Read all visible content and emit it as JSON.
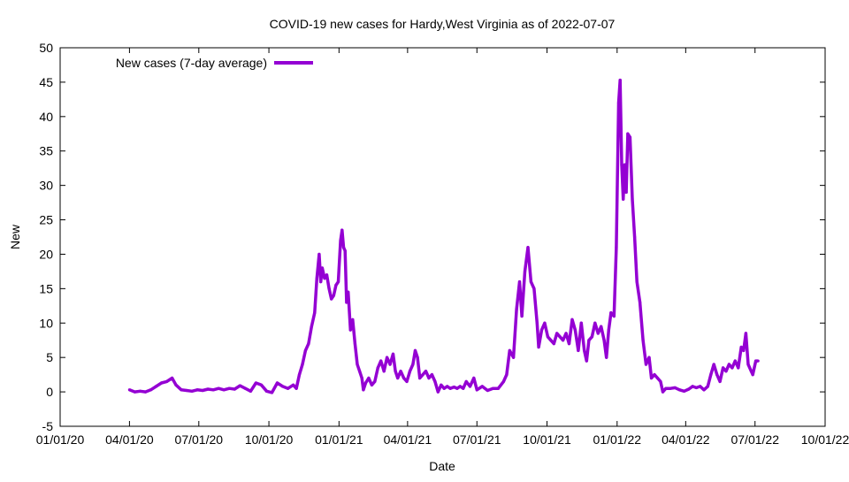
{
  "chart_data": {
    "type": "line",
    "title": "COVID-19 new cases for Hardy,West Virginia as of 2022-07-07",
    "xlabel": "Date",
    "ylabel": "New",
    "xlim": [
      "2020-01-01",
      "2022-10-01"
    ],
    "ylim": [
      -5,
      50
    ],
    "x_ticks": [
      "01/01/20",
      "04/01/20",
      "07/01/20",
      "10/01/20",
      "01/01/21",
      "04/01/21",
      "07/01/21",
      "10/01/21",
      "01/01/22",
      "04/01/22",
      "07/01/22",
      "10/01/22"
    ],
    "y_ticks": [
      "-5",
      "0",
      "5",
      "10",
      "15",
      "20",
      "25",
      "30",
      "35",
      "40",
      "45",
      "50"
    ],
    "grid": false,
    "legend_position": "top-left",
    "series": [
      {
        "name": "New cases (7-day average)",
        "color": "#9400d3",
        "x": [
          "2020-04-01",
          "2020-04-08",
          "2020-04-15",
          "2020-04-22",
          "2020-04-29",
          "2020-05-06",
          "2020-05-13",
          "2020-05-20",
          "2020-05-27",
          "2020-06-01",
          "2020-06-08",
          "2020-06-15",
          "2020-06-22",
          "2020-06-29",
          "2020-07-06",
          "2020-07-13",
          "2020-07-20",
          "2020-07-27",
          "2020-08-03",
          "2020-08-10",
          "2020-08-17",
          "2020-08-24",
          "2020-08-31",
          "2020-09-07",
          "2020-09-14",
          "2020-09-21",
          "2020-09-28",
          "2020-10-05",
          "2020-10-12",
          "2020-10-19",
          "2020-10-26",
          "2020-11-02",
          "2020-11-06",
          "2020-11-10",
          "2020-11-14",
          "2020-11-18",
          "2020-11-22",
          "2020-11-26",
          "2020-11-30",
          "2020-12-03",
          "2020-12-06",
          "2020-12-08",
          "2020-12-10",
          "2020-12-13",
          "2020-12-16",
          "2020-12-19",
          "2020-12-22",
          "2020-12-25",
          "2020-12-28",
          "2020-12-31",
          "2021-01-03",
          "2021-01-05",
          "2021-01-07",
          "2021-01-09",
          "2021-01-11",
          "2021-01-13",
          "2021-01-16",
          "2021-01-19",
          "2021-01-22",
          "2021-01-25",
          "2021-01-28",
          "2021-01-31",
          "2021-02-02",
          "2021-02-05",
          "2021-02-09",
          "2021-02-13",
          "2021-02-17",
          "2021-02-21",
          "2021-02-25",
          "2021-03-01",
          "2021-03-05",
          "2021-03-09",
          "2021-03-13",
          "2021-03-16",
          "2021-03-19",
          "2021-03-23",
          "2021-03-27",
          "2021-03-31",
          "2021-04-04",
          "2021-04-08",
          "2021-04-11",
          "2021-04-14",
          "2021-04-17",
          "2021-04-21",
          "2021-04-25",
          "2021-04-29",
          "2021-05-03",
          "2021-05-07",
          "2021-05-11",
          "2021-05-15",
          "2021-05-19",
          "2021-05-23",
          "2021-05-27",
          "2021-06-01",
          "2021-06-05",
          "2021-06-09",
          "2021-06-13",
          "2021-06-17",
          "2021-06-22",
          "2021-06-27",
          "2021-07-01",
          "2021-07-08",
          "2021-07-15",
          "2021-07-22",
          "2021-07-29",
          "2021-08-05",
          "2021-08-09",
          "2021-08-13",
          "2021-08-18",
          "2021-08-22",
          "2021-08-26",
          "2021-08-29",
          "2021-09-02",
          "2021-09-06",
          "2021-09-10",
          "2021-09-14",
          "2021-09-18",
          "2021-09-20",
          "2021-09-24",
          "2021-09-28",
          "2021-10-02",
          "2021-10-06",
          "2021-10-10",
          "2021-10-14",
          "2021-10-18",
          "2021-10-22",
          "2021-10-26",
          "2021-10-30",
          "2021-11-03",
          "2021-11-07",
          "2021-11-11",
          "2021-11-15",
          "2021-11-19",
          "2021-11-22",
          "2021-11-25",
          "2021-11-29",
          "2021-12-03",
          "2021-12-07",
          "2021-12-11",
          "2021-12-15",
          "2021-12-18",
          "2021-12-21",
          "2021-12-24",
          "2021-12-28",
          "2021-12-31",
          "2022-01-03",
          "2022-01-05",
          "2022-01-07",
          "2022-01-09",
          "2022-01-11",
          "2022-01-13",
          "2022-01-15",
          "2022-01-18",
          "2022-01-21",
          "2022-01-24",
          "2022-01-27",
          "2022-01-31",
          "2022-02-04",
          "2022-02-08",
          "2022-02-12",
          "2022-02-15",
          "2022-02-19",
          "2022-02-23",
          "2022-02-27",
          "2022-03-02",
          "2022-03-06",
          "2022-03-12",
          "2022-03-18",
          "2022-03-24",
          "2022-03-30",
          "2022-04-05",
          "2022-04-10",
          "2022-04-15",
          "2022-04-20",
          "2022-04-25",
          "2022-04-30",
          "2022-05-04",
          "2022-05-08",
          "2022-05-12",
          "2022-05-16",
          "2022-05-20",
          "2022-05-24",
          "2022-05-28",
          "2022-06-01",
          "2022-06-05",
          "2022-06-09",
          "2022-06-13",
          "2022-06-16",
          "2022-06-19",
          "2022-06-22",
          "2022-06-26",
          "2022-06-28",
          "2022-07-02",
          "2022-07-05"
        ],
        "y": [
          0.3,
          0.0,
          0.1,
          0.0,
          0.3,
          0.8,
          1.3,
          1.5,
          2.0,
          1.0,
          0.3,
          0.2,
          0.1,
          0.3,
          0.2,
          0.4,
          0.3,
          0.5,
          0.3,
          0.5,
          0.4,
          0.9,
          0.5,
          0.1,
          1.3,
          1.0,
          0.1,
          -0.1,
          1.3,
          0.8,
          0.5,
          1.0,
          0.5,
          2.5,
          4.0,
          6.0,
          7.0,
          9.5,
          11.5,
          16.5,
          20.0,
          16.0,
          18.0,
          16.5,
          17.0,
          15.0,
          13.5,
          14.0,
          15.5,
          16.0,
          22.0,
          23.5,
          21.0,
          20.5,
          13.0,
          14.5,
          9.0,
          10.5,
          7.0,
          4.0,
          3.0,
          2.0,
          0.3,
          1.3,
          2.0,
          1.0,
          1.5,
          3.5,
          4.5,
          3.0,
          5.0,
          4.0,
          5.5,
          3.0,
          2.0,
          3.0,
          2.0,
          1.5,
          3.0,
          4.0,
          6.0,
          5.0,
          2.0,
          2.5,
          3.0,
          2.0,
          2.5,
          1.5,
          0.0,
          1.0,
          0.5,
          0.8,
          0.5,
          0.7,
          0.5,
          0.8,
          0.5,
          1.5,
          0.8,
          2.0,
          0.3,
          0.8,
          0.2,
          0.5,
          0.5,
          1.5,
          2.5,
          6.0,
          5.0,
          12.0,
          16.0,
          11.0,
          17.5,
          21.0,
          16.0,
          15.0,
          10.0,
          6.5,
          9.0,
          10.0,
          8.0,
          7.5,
          7.0,
          8.5,
          8.0,
          7.5,
          8.5,
          7.0,
          10.5,
          9.0,
          6.0,
          10.0,
          6.0,
          4.5,
          7.5,
          8.0,
          10.0,
          8.5,
          9.5,
          7.5,
          5.0,
          9.0,
          11.5,
          11.0,
          21.0,
          42.0,
          45.3,
          33.0,
          28.0,
          33.0,
          29.0,
          37.5,
          37.0,
          28.0,
          22.5,
          16.0,
          13.0,
          7.5,
          4.0,
          5.0,
          2.0,
          2.5,
          2.0,
          1.5,
          0.0,
          0.5,
          0.5,
          0.6,
          0.3,
          0.1,
          0.4,
          0.8,
          0.6,
          0.8,
          0.3,
          0.8,
          2.5,
          4.0,
          2.5,
          1.5,
          3.5,
          3.0,
          4.0,
          3.5,
          4.5,
          3.5,
          6.5,
          6.0,
          8.5,
          4.0,
          3.0,
          2.5,
          4.5,
          4.5
        ]
      }
    ]
  }
}
